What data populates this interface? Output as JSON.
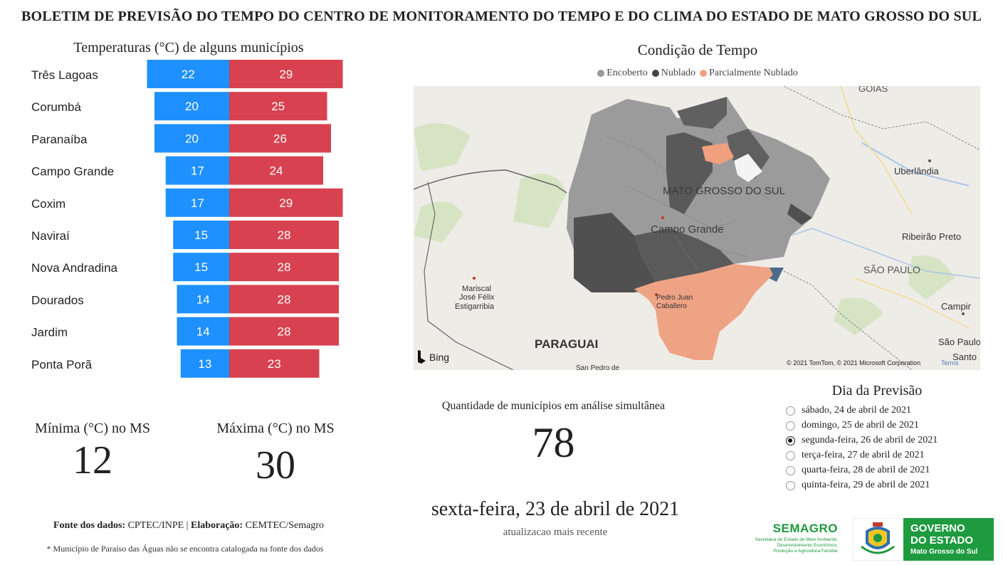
{
  "header": {
    "title": "BOLETIM DE PREVISÃO DO TEMPO DO CENTRO DE MONITORAMENTO DO TEMPO E DO CLIMA DO ESTADO DE MATO GROSSO DO SUL"
  },
  "chart_data": [
    {
      "type": "bar",
      "title": "Temperaturas (°C) de alguns municípios",
      "categories": [
        "Três Lagoas",
        "Corumbá",
        "Paranaíba",
        "Campo Grande",
        "Coxim",
        "Naviraí",
        "Nova Andradina",
        "Dourados",
        "Jardim",
        "Ponta Porã"
      ],
      "series": [
        {
          "values": [
            22,
            20,
            20,
            17,
            17,
            15,
            15,
            14,
            14,
            13
          ],
          "color": "#1e90ff"
        },
        {
          "values": [
            29,
            25,
            26,
            24,
            29,
            28,
            28,
            28,
            28,
            23
          ],
          "color": "#d8414f"
        }
      ]
    }
  ],
  "stats": {
    "min_label": "Mínima (°C) no MS",
    "min_value": "12",
    "max_label": "Máxima (°C) no MS",
    "max_value": "30"
  },
  "map": {
    "title": "Condição de Tempo",
    "legend": [
      {
        "label": "Encoberto",
        "color": "#999999"
      },
      {
        "label": "Nublado",
        "color": "#444444"
      },
      {
        "label": "Parcialmente Nublado",
        "color": "#f0a07e"
      }
    ],
    "labels": {
      "ms": "MATO GROSSO DO SUL",
      "campo_grande": "Campo Grande",
      "goias": "GOIÁS",
      "uberlandia": "Uberlândia",
      "ribeirao": "Ribeirão Preto",
      "sao_paulo_state": "SÃO PAULO",
      "campinas": "Campir",
      "sao_paulo_city": "São Paulo",
      "santos": "Santo",
      "mariscal_1": "Mariscal",
      "mariscal_2": "José Félix",
      "mariscal_3": "Estigarribia",
      "paraguai": "PARAGUAI",
      "pedro_1": "Pedro Juan",
      "pedro_2": "Caballero",
      "san_pedro": "San Pedro de",
      "bing": "Bing",
      "copyright": "© 2021 TomTom, © 2021 Microsoft Corporation",
      "terms": "Terms"
    }
  },
  "quantity": {
    "label": "Quantidade de municípios em análise simultânea",
    "value": "78"
  },
  "update": {
    "date": "sexta-feira, 23 de abril de 2021",
    "caption": "atualizacao mais recente"
  },
  "forecast": {
    "title": "Dia da Previsão",
    "options": [
      {
        "label": "sábado, 24 de abril de 2021",
        "selected": false
      },
      {
        "label": "domingo, 25 de abril de 2021",
        "selected": false
      },
      {
        "label": "segunda-feira, 26 de abril de 2021",
        "selected": true
      },
      {
        "label": "terça-feira, 27 de abril de 2021",
        "selected": false
      },
      {
        "label": "quarta-feira, 28 de abril de 2021",
        "selected": false
      },
      {
        "label": "quinta-feira, 29 de abril de 2021",
        "selected": false
      }
    ]
  },
  "footer": {
    "fonte_label": "Fonte dos dados:",
    "fonte_value": "CPTEC/INPE",
    "sep": "|",
    "elab_label": "Elaboração:",
    "elab_value": "CEMTEC/Semagro",
    "note": "* Município de Paraíso das Águas não se encontra catalogada na fonte dos dados"
  },
  "logos": {
    "semagro_name": "SEMAGRO",
    "semagro_desc_1": "Secretaria de Estado de Meio Ambiente,",
    "semagro_desc_2": "Desenvolvimento Econômico,",
    "semagro_desc_3": "Produção e Agricultura Familiar",
    "gov_1": "GOVERNO",
    "gov_2": "DO ESTADO",
    "gov_3": "Mato Grosso do Sul"
  }
}
